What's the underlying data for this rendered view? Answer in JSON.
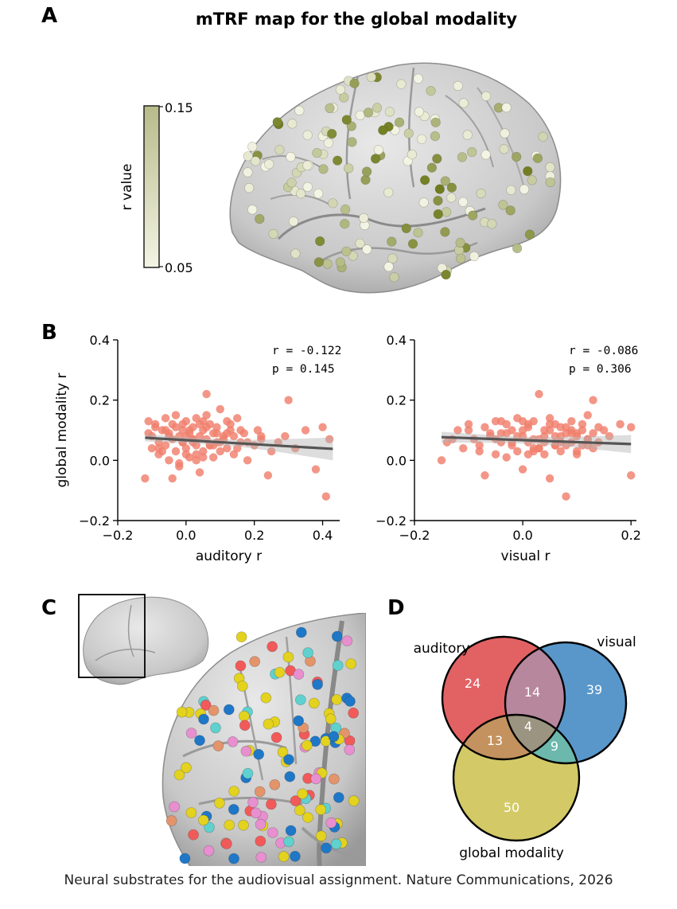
{
  "panels": {
    "a": {
      "letter": "A",
      "title": "mTRF map for the global modality",
      "colorbar": {
        "label": "r value",
        "max_label": "0.15",
        "min_label": "0.05",
        "color_low": "#f3f4e4",
        "color_high": "#6e7a1a"
      }
    },
    "b": {
      "letter": "B"
    },
    "c": {
      "letter": "C"
    },
    "d": {
      "letter": "D"
    }
  },
  "chart_data": [
    {
      "type": "scatter",
      "panel": "B-left",
      "xlabel": "auditory r",
      "ylabel": "global modality r",
      "xlim": [
        -0.2,
        0.45
      ],
      "ylim": [
        -0.2,
        0.4
      ],
      "xticks": [
        "−0.2",
        "0.0",
        "0.2",
        "0.4"
      ],
      "xtick_values": [
        -0.2,
        0.0,
        0.2,
        0.4
      ],
      "yticks": [
        "−0.2",
        "0.0",
        "0.2",
        "0.4"
      ],
      "ytick_values": [
        -0.2,
        0.0,
        0.2,
        0.4
      ],
      "stats": {
        "r": "r = -0.122",
        "p": "p = 0.145"
      },
      "point_color": "#f07f6c",
      "fit_color": "#555555",
      "fit": {
        "x": [
          -0.12,
          0.43
        ],
        "y": [
          0.075,
          0.038
        ],
        "band": [
          0.012,
          0.038
        ]
      },
      "x": [
        -0.12,
        -0.11,
        -0.1,
        -0.1,
        -0.09,
        -0.08,
        -0.08,
        -0.07,
        -0.06,
        -0.06,
        -0.05,
        -0.05,
        -0.04,
        -0.04,
        -0.03,
        -0.03,
        -0.02,
        -0.02,
        -0.01,
        -0.01,
        0.0,
        0.0,
        0.01,
        0.01,
        0.02,
        0.02,
        0.03,
        0.03,
        0.04,
        0.04,
        0.05,
        0.05,
        0.06,
        0.06,
        0.07,
        0.07,
        0.08,
        0.08,
        0.09,
        0.1,
        0.1,
        0.11,
        0.12,
        0.12,
        0.13,
        0.14,
        0.15,
        0.16,
        0.17,
        0.18,
        0.2,
        0.21,
        0.22,
        0.24,
        0.25,
        0.27,
        0.29,
        0.3,
        0.32,
        0.35,
        0.38,
        0.4,
        0.41,
        0.42,
        -0.11,
        -0.09,
        -0.07,
        -0.05,
        -0.03,
        -0.01,
        0.01,
        0.03,
        0.05,
        0.07,
        0.09,
        0.11,
        0.13,
        0.15,
        0.18,
        0.22,
        -0.06,
        -0.02,
        0.02,
        0.06,
        0.1,
        0.14,
        0.04,
        0.0,
        0.08,
        0.06,
        -0.04,
        0.12,
        0.02,
        -0.08,
        0.16,
        0.0,
        0.05,
        0.09,
        -0.01,
        0.03
      ],
      "y": [
        -0.06,
        0.13,
        0.08,
        0.04,
        0.11,
        0.06,
        0.02,
        0.1,
        0.14,
        0.05,
        0.09,
        0.0,
        0.12,
        0.07,
        0.03,
        0.15,
        0.08,
        -0.02,
        0.1,
        0.06,
        0.13,
        0.04,
        0.09,
        0.01,
        0.11,
        0.07,
        0.14,
        0.05,
        0.08,
        -0.04,
        0.1,
        0.03,
        0.22,
        0.07,
        0.12,
        0.05,
        0.09,
        0.01,
        0.11,
        0.06,
        0.17,
        0.08,
        0.04,
        0.13,
        0.1,
        0.02,
        0.14,
        0.06,
        0.09,
        0.0,
        0.05,
        0.1,
        0.07,
        -0.05,
        0.03,
        0.06,
        0.08,
        0.2,
        0.04,
        0.1,
        -0.03,
        0.11,
        -0.12,
        0.07,
        0.09,
        0.12,
        0.03,
        0.08,
        0.11,
        0.06,
        0.1,
        0.02,
        0.13,
        0.05,
        0.09,
        0.07,
        0.12,
        0.04,
        0.06,
        0.08,
        0.1,
        -0.01,
        0.06,
        0.11,
        0.03,
        0.08,
        0.12,
        0.02,
        0.05,
        0.15,
        -0.06,
        0.09,
        0.07,
        0.04,
        0.1,
        0.08,
        0.01,
        0.06,
        0.12,
        0.0
      ]
    },
    {
      "type": "scatter",
      "panel": "B-right",
      "xlabel": "visual r",
      "ylabel": "",
      "xlim": [
        -0.2,
        0.21
      ],
      "ylim": [
        -0.2,
        0.4
      ],
      "xticks": [
        "−0.2",
        "0.0",
        "0.2"
      ],
      "xtick_values": [
        -0.2,
        0.0,
        0.2
      ],
      "yticks": [
        "−0.2",
        "0.0",
        "0.2",
        "0.4"
      ],
      "ytick_values": [
        -0.2,
        0.0,
        0.2,
        0.4
      ],
      "stats": {
        "r": "r = -0.086",
        "p": "p = 0.306"
      },
      "point_color": "#f07f6c",
      "fit_color": "#555555",
      "fit": {
        "x": [
          -0.15,
          0.2
        ],
        "y": [
          0.077,
          0.054
        ],
        "band": [
          0.018,
          0.03
        ]
      },
      "x": [
        -0.15,
        -0.14,
        -0.12,
        -0.11,
        -0.1,
        -0.09,
        -0.08,
        -0.07,
        -0.07,
        -0.06,
        -0.05,
        -0.05,
        -0.04,
        -0.04,
        -0.03,
        -0.03,
        -0.02,
        -0.02,
        -0.01,
        -0.01,
        0.0,
        0.0,
        0.01,
        0.01,
        0.02,
        0.02,
        0.03,
        0.03,
        0.04,
        0.04,
        0.05,
        0.05,
        0.06,
        0.06,
        0.07,
        0.07,
        0.08,
        0.08,
        0.09,
        0.09,
        0.1,
        0.1,
        0.11,
        0.11,
        0.12,
        0.12,
        0.13,
        0.13,
        0.14,
        0.15,
        0.16,
        0.18,
        0.2,
        0.2,
        -0.13,
        -0.1,
        -0.08,
        -0.06,
        -0.04,
        -0.02,
        0.0,
        0.02,
        0.04,
        0.06,
        0.08,
        0.1,
        0.12,
        0.14,
        0.03,
        0.05,
        0.07,
        0.09,
        -0.01,
        0.01,
        0.11,
        0.02,
        0.06,
        -0.03,
        0.08,
        0.04,
        0.0,
        0.1,
        0.13,
        0.07,
        0.05,
        0.03,
        -0.05,
        0.09,
        0.12,
        0.01
      ],
      "y": [
        0.0,
        0.06,
        0.1,
        0.04,
        0.12,
        0.07,
        0.03,
        0.11,
        -0.05,
        0.08,
        0.13,
        0.02,
        0.09,
        0.06,
        0.12,
        0.01,
        0.1,
        0.05,
        0.14,
        0.03,
        0.08,
        -0.03,
        0.11,
        0.06,
        0.13,
        0.04,
        0.22,
        0.07,
        0.1,
        0.02,
        0.12,
        -0.06,
        0.08,
        0.05,
        0.11,
        0.03,
        0.09,
        -0.12,
        0.13,
        0.06,
        0.08,
        0.02,
        0.1,
        0.05,
        0.07,
        0.15,
        0.09,
        0.04,
        0.06,
        0.1,
        0.08,
        0.12,
        0.11,
        -0.05,
        0.07,
        0.1,
        0.05,
        0.09,
        0.13,
        0.06,
        0.1,
        0.03,
        0.08,
        0.12,
        0.05,
        0.09,
        0.07,
        0.11,
        0.04,
        0.14,
        0.06,
        0.1,
        0.08,
        0.02,
        0.12,
        0.07,
        0.05,
        0.09,
        0.11,
        0.06,
        0.13,
        0.03,
        0.2,
        0.08,
        0.1,
        0.04,
        0.07,
        0.09,
        0.05,
        0.12
      ]
    },
    {
      "type": "venn",
      "panel": "D",
      "sets": [
        {
          "name": "auditory",
          "color": "#e05557"
        },
        {
          "name": "visual",
          "color": "#4b8ec7"
        },
        {
          "name": "global modality",
          "color": "#cfc55a"
        }
      ],
      "regions": {
        "auditory_only": "24",
        "visual_only": "39",
        "global_only": "50",
        "auditory_visual": "14",
        "auditory_global": "13",
        "visual_global": "9",
        "all": "4"
      },
      "region_colors": {
        "auditory_visual": "#b7879e",
        "auditory_global": "#c4925e",
        "visual_global": "#6cb8ac",
        "all": "#9a9480"
      }
    }
  ],
  "panel_c": {
    "legend_colors": [
      "#1f77c8",
      "#e3d21e",
      "#f25a5a",
      "#5fd1cf",
      "#e78fcf",
      "#e3946b"
    ]
  },
  "caption": "Neural substrates for the audiovisual assignment. Nature Communications, 2026"
}
